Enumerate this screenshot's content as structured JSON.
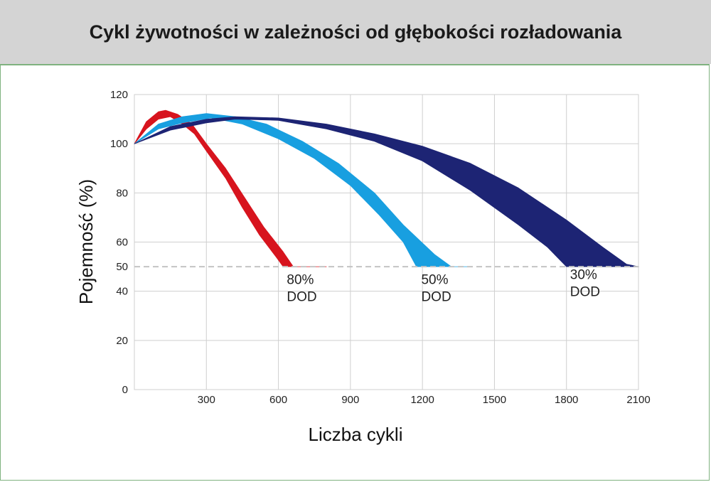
{
  "header": {
    "title": "Cykl żywotności w zależności od głębokości rozładowania"
  },
  "chart_data": {
    "type": "area",
    "title": "Cykl żywotności w zależności od głębokości rozładowania",
    "xlabel": "Liczba cykli",
    "ylabel": "Pojemność (%)",
    "xlim": [
      0,
      2100
    ],
    "ylim": [
      0,
      120
    ],
    "x_ticks": [
      300,
      600,
      900,
      1200,
      1500,
      1800,
      2100
    ],
    "y_ticks": [
      0,
      20,
      40,
      50,
      60,
      80,
      100,
      120
    ],
    "grid": true,
    "reference_line": {
      "y": 50,
      "style": "dashed",
      "color": "#c4c4c4"
    },
    "series": [
      {
        "name": "80% DOD",
        "label_lines": [
          "80%",
          "DOD"
        ],
        "color": "#d7141e",
        "upper": [
          [
            0,
            100
          ],
          [
            50,
            109
          ],
          [
            100,
            113
          ],
          [
            130,
            113.6
          ],
          [
            180,
            112
          ],
          [
            240,
            108
          ],
          [
            300,
            100
          ],
          [
            380,
            90
          ],
          [
            460,
            78
          ],
          [
            540,
            66
          ],
          [
            620,
            56
          ],
          [
            662,
            50
          ],
          [
            800,
            50
          ]
        ],
        "lower": [
          [
            0,
            100
          ],
          [
            50,
            106
          ],
          [
            100,
            110
          ],
          [
            150,
            111
          ],
          [
            200,
            108
          ],
          [
            250,
            104
          ],
          [
            300,
            97
          ],
          [
            380,
            86
          ],
          [
            450,
            74
          ],
          [
            520,
            63
          ],
          [
            590,
            54
          ],
          [
            620,
            50
          ]
        ],
        "label_at": [
          635,
          43
        ]
      },
      {
        "name": "50% DOD",
        "label_lines": [
          "50%",
          "DOD"
        ],
        "color": "#189fe0",
        "upper": [
          [
            0,
            100
          ],
          [
            100,
            108
          ],
          [
            200,
            111
          ],
          [
            300,
            112.3
          ],
          [
            420,
            111
          ],
          [
            550,
            108
          ],
          [
            700,
            101
          ],
          [
            850,
            92
          ],
          [
            1000,
            80
          ],
          [
            1120,
            67
          ],
          [
            1250,
            55
          ],
          [
            1320,
            50
          ],
          [
            1390,
            50
          ]
        ],
        "lower": [
          [
            0,
            100
          ],
          [
            100,
            106
          ],
          [
            200,
            108.5
          ],
          [
            320,
            110.5
          ],
          [
            450,
            108
          ],
          [
            600,
            102
          ],
          [
            750,
            94
          ],
          [
            900,
            83
          ],
          [
            1020,
            71
          ],
          [
            1120,
            60
          ],
          [
            1175,
            50
          ]
        ],
        "label_at": [
          1195,
          43
        ]
      },
      {
        "name": "30% DOD",
        "label_lines": [
          "30%",
          "DOD"
        ],
        "color": "#1d2474",
        "upper": [
          [
            0,
            100
          ],
          [
            150,
            107
          ],
          [
            300,
            110
          ],
          [
            420,
            111
          ],
          [
            600,
            110.5
          ],
          [
            800,
            108
          ],
          [
            1000,
            104
          ],
          [
            1200,
            99
          ],
          [
            1400,
            92
          ],
          [
            1600,
            82
          ],
          [
            1800,
            69
          ],
          [
            1950,
            58
          ],
          [
            2050,
            51
          ],
          [
            2100,
            50
          ]
        ],
        "lower": [
          [
            0,
            100
          ],
          [
            150,
            105.5
          ],
          [
            300,
            108.5
          ],
          [
            420,
            110
          ],
          [
            600,
            109.5
          ],
          [
            800,
            106
          ],
          [
            1000,
            101
          ],
          [
            1200,
            93
          ],
          [
            1400,
            81
          ],
          [
            1600,
            67
          ],
          [
            1720,
            58
          ],
          [
            1800,
            50
          ]
        ],
        "label_at": [
          1815,
          45
        ]
      }
    ]
  }
}
